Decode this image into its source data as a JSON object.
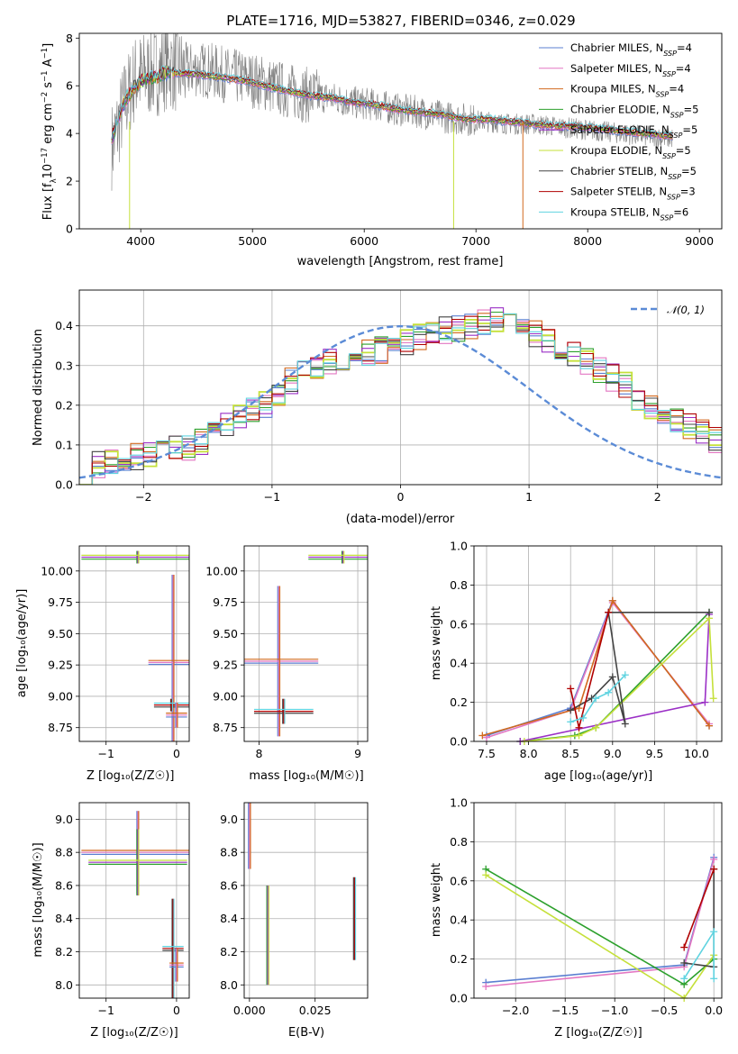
{
  "chart_data": [
    {
      "type": "line",
      "title": "PLATE=1716, MJD=53827, FIBERID=0346, z=0.029",
      "xlabel": "wavelength [Angstrom, rest frame]",
      "ylabel": "Flux [f_λ 10^-17 erg cm^-2 s^-1 A^-1]",
      "xlim": [
        3450,
        9200
      ],
      "ylim": [
        0,
        8.2
      ],
      "xticks": [
        "4000",
        "5000",
        "6000",
        "7000",
        "8000",
        "9000"
      ],
      "yticks": [
        "0",
        "2",
        "4",
        "6",
        "8"
      ],
      "grid": false,
      "legend_position": "top-right",
      "observed_spectrum": {
        "color": "#808080",
        "x": [
          3750,
          3850,
          3950,
          4050,
          4150,
          4250,
          4350,
          4500,
          4650,
          4800,
          4950,
          5100,
          5300,
          5500,
          5700,
          5900,
          6100,
          6300,
          6500,
          6700,
          6900,
          7100,
          7300,
          7500,
          7700,
          7900,
          8100,
          8300,
          8500,
          8700
        ],
        "y": [
          3.5,
          5.2,
          6.3,
          6.5,
          6.6,
          6.9,
          6.6,
          6.7,
          6.6,
          6.4,
          6.3,
          6.1,
          5.8,
          5.6,
          5.5,
          5.3,
          5.2,
          5.0,
          4.9,
          4.7,
          4.6,
          4.5,
          4.4,
          4.4,
          4.3,
          4.2,
          4.1,
          4.0,
          3.9,
          3.8
        ]
      },
      "series": [
        {
          "name": "Chabrier MILES, N_SSP=4",
          "color": "#5b7fd1"
        },
        {
          "name": "Salpeter MILES, N_SSP=4",
          "color": "#e377c2"
        },
        {
          "name": "Kroupa MILES, N_SSP=4",
          "color": "#d2691e"
        },
        {
          "name": "Chabrier ELODIE, N_SSP=5",
          "color": "#2ca02c"
        },
        {
          "name": "Salpeter ELODIE, N_SSP=5",
          "color": "#9b30c6"
        },
        {
          "name": "Kroupa ELODIE, N_SSP=5",
          "color": "#c5e03a"
        },
        {
          "name": "Chabrier STELIB, N_SSP=5",
          "color": "#444444"
        },
        {
          "name": "Salpeter STELIB, N_SSP=3",
          "color": "#b00000"
        },
        {
          "name": "Kroupa STELIB, N_SSP=6",
          "color": "#5fd3e0"
        }
      ],
      "model_spectrum": {
        "x": [
          3750,
          3850,
          3950,
          4050,
          4150,
          4250,
          4350,
          4500,
          4650,
          4800,
          4950,
          5100,
          5300,
          5500,
          5700,
          5900,
          6100,
          6300,
          6500,
          6700,
          6900,
          7100,
          7300,
          7500,
          7700,
          7900,
          8100,
          8300,
          8500,
          8700
        ],
        "y": [
          3.9,
          5.3,
          6.0,
          6.3,
          6.4,
          6.6,
          6.5,
          6.5,
          6.4,
          6.3,
          6.2,
          6.0,
          5.8,
          5.6,
          5.5,
          5.3,
          5.2,
          5.0,
          4.9,
          4.8,
          4.6,
          4.6,
          4.5,
          4.4,
          4.3,
          4.3,
          4.2,
          4.1,
          4.0,
          3.9
        ]
      }
    },
    {
      "type": "step",
      "xlabel": "(data-model)/error",
      "ylabel": "Normed distribution",
      "xlim": [
        -2.5,
        2.5
      ],
      "ylim": [
        0,
        0.49
      ],
      "xticks": [
        "−2",
        "−1",
        "0",
        "1",
        "2"
      ],
      "yticks": [
        "0.0",
        "0.1",
        "0.2",
        "0.3",
        "0.4"
      ],
      "grid": true,
      "legend_position": "top-right",
      "legend_label": "𝒩(0, 1)",
      "curve": "standard normal pdf",
      "histogram_bin_width": 0.1,
      "histogram": [
        0.03,
        0.05,
        0.055,
        0.06,
        0.07,
        0.08,
        0.085,
        0.09,
        0.095,
        0.11,
        0.13,
        0.15,
        0.17,
        0.19,
        0.2,
        0.23,
        0.26,
        0.28,
        0.3,
        0.31,
        0.32,
        0.33,
        0.33,
        0.34,
        0.35,
        0.36,
        0.37,
        0.38,
        0.39,
        0.39,
        0.4,
        0.41,
        0.42,
        0.41,
        0.4,
        0.38,
        0.36,
        0.35,
        0.33,
        0.31,
        0.29,
        0.27,
        0.25,
        0.22,
        0.2,
        0.18,
        0.16,
        0.15,
        0.13,
        0.11
      ]
    },
    {
      "type": "scatter",
      "xlabel": "Z [log10(Z/Z☉)]",
      "ylabel": "age  [log10(age/yr)]",
      "xlim": [
        -1.38,
        0.18
      ],
      "ylim": [
        8.64,
        10.2
      ],
      "xticks": [
        "−1",
        "0"
      ],
      "yticks": [
        "8.75",
        "9.00",
        "9.25",
        "9.50",
        "9.75",
        "10.00"
      ],
      "grid": true,
      "points": [
        {
          "x": -0.05,
          "y": 9.27,
          "xerr": 0.35,
          "yerr": 0.7
        },
        {
          "x": -0.55,
          "y": 10.11,
          "xerr": 0.8,
          "yerr": 0.05
        },
        {
          "x": -0.07,
          "y": 8.93,
          "xerr": 0.25,
          "yerr": 0.05
        },
        {
          "x": 0.0,
          "y": 8.85,
          "xerr": 0.15,
          "yerr": 0.1
        }
      ]
    },
    {
      "type": "scatter",
      "xlabel": "mass [log10(M/M☉)]",
      "ylabel": "",
      "xlim": [
        7.85,
        9.1
      ],
      "ylim": [
        8.64,
        10.2
      ],
      "xticks": [
        "8",
        "9"
      ],
      "yticks": [
        "8.75",
        "9.00",
        "9.25",
        "9.50",
        "9.75",
        "10.00"
      ],
      "grid": true,
      "points": [
        {
          "x": 8.2,
          "y": 9.28,
          "xerr": 0.4,
          "yerr": 0.6
        },
        {
          "x": 8.85,
          "y": 10.11,
          "xerr": 0.35,
          "yerr": 0.05
        },
        {
          "x": 8.25,
          "y": 8.88,
          "xerr": 0.3,
          "yerr": 0.1
        }
      ]
    },
    {
      "type": "line",
      "xlabel": "age  [log10(age/yr)]",
      "ylabel": "mass weight",
      "xlim": [
        7.35,
        10.3
      ],
      "ylim": [
        0,
        1.0
      ],
      "xticks": [
        "7.5",
        "8.0",
        "8.5",
        "9.0",
        "9.5",
        "10.0"
      ],
      "yticks": [
        "0.0",
        "0.2",
        "0.4",
        "0.6",
        "0.8",
        "1.0"
      ],
      "grid": true,
      "series": [
        {
          "name": "Chabrier MILES, N_SSP=4",
          "x": [
            7.5,
            8.5,
            9.0,
            10.15
          ],
          "y": [
            0.03,
            0.17,
            0.72,
            0.08
          ]
        },
        {
          "name": "Salpeter MILES, N_SSP=4",
          "x": [
            7.5,
            8.5,
            9.0,
            10.15
          ],
          "y": [
            0.02,
            0.16,
            0.71,
            0.09
          ]
        },
        {
          "name": "Kroupa MILES, N_SSP=4",
          "x": [
            7.45,
            8.6,
            9.0,
            10.15
          ],
          "y": [
            0.03,
            0.17,
            0.72,
            0.08
          ]
        },
        {
          "name": "Chabrier ELODIE, N_SSP=5",
          "x": [
            7.9,
            8.55,
            8.8,
            10.15
          ],
          "y": [
            0.0,
            0.03,
            0.07,
            0.66
          ]
        },
        {
          "name": "Salpeter ELODIE, N_SSP=5",
          "x": [
            7.9,
            10.1,
            10.15
          ],
          "y": [
            0.0,
            0.2,
            0.65
          ]
        },
        {
          "name": "Kroupa ELODIE, N_SSP=5",
          "x": [
            7.95,
            8.6,
            8.8,
            10.15,
            10.2
          ],
          "y": [
            0.0,
            0.03,
            0.07,
            0.63,
            0.22
          ]
        },
        {
          "name": "Chabrier STELIB, N_SSP=5",
          "x": [
            8.5,
            8.75,
            9.0,
            9.15,
            8.95,
            10.15
          ],
          "y": [
            0.16,
            0.22,
            0.33,
            0.09,
            0.66,
            0.66
          ]
        },
        {
          "name": "Salpeter STELIB, N_SSP=3",
          "x": [
            8.5,
            8.6,
            8.95
          ],
          "y": [
            0.27,
            0.07,
            0.66
          ]
        },
        {
          "name": "Kroupa STELIB, N_SSP=6",
          "x": [
            8.5,
            8.65,
            8.8,
            8.95,
            9.15
          ],
          "y": [
            0.1,
            0.12,
            0.22,
            0.25,
            0.34
          ]
        }
      ]
    },
    {
      "type": "scatter",
      "xlabel": "Z [log10(Z/Z☉)]",
      "ylabel": "mass [log10(M/M☉)]",
      "xlim": [
        -1.38,
        0.18
      ],
      "ylim": [
        7.92,
        9.1
      ],
      "xticks": [
        "−1",
        "0"
      ],
      "yticks": [
        "8.0",
        "8.2",
        "8.4",
        "8.6",
        "8.8",
        "9.0"
      ],
      "grid": true,
      "points": [
        {
          "x": -0.55,
          "y": 8.8,
          "xerr": 0.8,
          "yerr": 0.25
        },
        {
          "x": -0.55,
          "y": 8.74,
          "xerr": 0.7,
          "yerr": 0.2
        },
        {
          "x": -0.05,
          "y": 8.22,
          "xerr": 0.15,
          "yerr": 0.3
        },
        {
          "x": 0.0,
          "y": 8.12,
          "xerr": 0.1,
          "yerr": 0.1
        }
      ]
    },
    {
      "type": "scatter",
      "xlabel": "E(B-V)",
      "ylabel": "",
      "xlim": [
        -0.002,
        0.045
      ],
      "ylim": [
        7.92,
        9.1
      ],
      "xticks": [
        "0.000",
        "0.025"
      ],
      "yticks": [
        "8.0",
        "8.2",
        "8.4",
        "8.6",
        "8.8",
        "9.0"
      ],
      "grid": true,
      "points": [
        {
          "x": 0.0,
          "y": 8.9,
          "yerr": 0.2
        },
        {
          "x": 0.007,
          "y": 8.3,
          "yerr": 0.3
        },
        {
          "x": 0.04,
          "y": 8.4,
          "yerr": 0.25
        }
      ]
    },
    {
      "type": "line",
      "xlabel": "Z [log10(Z/Z☉)]",
      "ylabel": "mass weight",
      "xlim": [
        -2.42,
        0.08
      ],
      "ylim": [
        0,
        1.0
      ],
      "xticks": [
        "−2.0",
        "−1.5",
        "−1.0",
        "−0.5",
        "0.0"
      ],
      "yticks": [
        "0.0",
        "0.2",
        "0.4",
        "0.6",
        "0.8",
        "1.0"
      ],
      "grid": true,
      "series": [
        {
          "name": "Chabrier MILES, N_SSP=4",
          "x": [
            -2.3,
            -0.3,
            0.0
          ],
          "y": [
            0.08,
            0.17,
            0.72
          ]
        },
        {
          "name": "Salpeter MILES, N_SSP=4",
          "x": [
            -2.3,
            -0.3,
            0.0
          ],
          "y": [
            0.06,
            0.16,
            0.71
          ]
        },
        {
          "name": "Chabrier ELODIE, N_SSP=5",
          "x": [
            -2.3,
            -0.3,
            0.0
          ],
          "y": [
            0.66,
            0.07,
            0.2
          ]
        },
        {
          "name": "Kroupa ELODIE, N_SSP=5",
          "x": [
            -2.3,
            -0.3,
            0.0
          ],
          "y": [
            0.63,
            0.0,
            0.22
          ]
        },
        {
          "name": "Chabrier STELIB, N_SSP=5",
          "x": [
            -0.3,
            0.0,
            0.0
          ],
          "y": [
            0.18,
            0.16,
            0.66
          ]
        },
        {
          "name": "Salpeter STELIB, N_SSP=3",
          "x": [
            -0.3,
            0.0
          ],
          "y": [
            0.26,
            0.66
          ]
        },
        {
          "name": "Kroupa STELIB, N_SSP=6",
          "x": [
            -0.3,
            0.0,
            0.0
          ],
          "y": [
            0.1,
            0.34,
            0.1
          ]
        }
      ]
    }
  ]
}
